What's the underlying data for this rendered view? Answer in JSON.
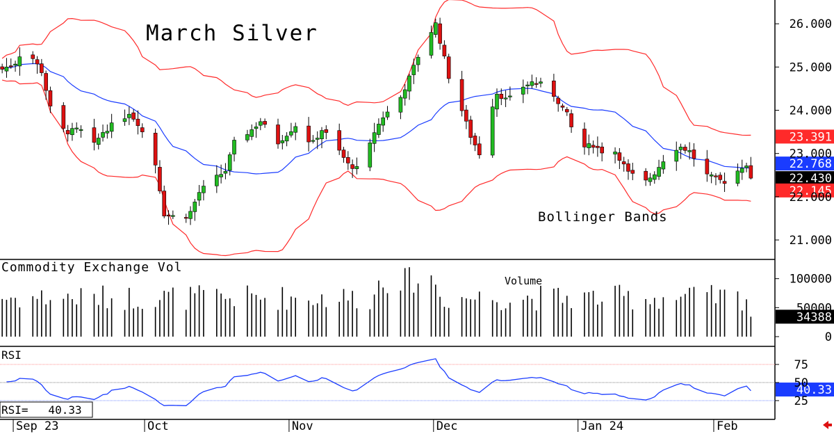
{
  "title": "March Silver",
  "price_panel": {
    "annotation": "Bollinger Bands",
    "y_ticks": [
      "26.000",
      "25.000",
      "24.000",
      "23.000",
      "22.000",
      "21.000"
    ],
    "y_tick_values": [
      26,
      25,
      24,
      23,
      22,
      21
    ],
    "y_range": [
      20.55,
      26.55
    ],
    "value_boxes": [
      {
        "label": "23.391",
        "value": 23.391,
        "color": "#ff2a2a"
      },
      {
        "label": "22.768",
        "value": 22.768,
        "color": "#1a3cff"
      },
      {
        "label": "22.430",
        "value": 22.43,
        "color": "#000000"
      },
      {
        "label": "22.145",
        "value": 22.145,
        "color": "#ff2a2a"
      }
    ]
  },
  "volume_panel": {
    "title": "Commodity Exchange Vol",
    "annotation": "Volume",
    "y_ticks": [
      "100000",
      "50000",
      "0"
    ],
    "y_tick_values": [
      100000,
      50000,
      0
    ],
    "y_range": [
      0,
      150000
    ],
    "value_box": {
      "label": "34388",
      "value": 34388,
      "color": "#000000"
    }
  },
  "rsi_panel": {
    "title": "RSI",
    "readout": "RSI=   40.33",
    "y_ticks": [
      "75",
      "50",
      "25"
    ],
    "y_tick_values": [
      75,
      50,
      25
    ],
    "y_range": [
      0,
      100
    ],
    "value_box": {
      "label": "40.33",
      "value": 40.33,
      "color": "#1a3cff"
    }
  },
  "x_axis": {
    "labels": [
      "Sep 23",
      "Oct",
      "Nov",
      "Dec",
      "Jan 24",
      "Feb"
    ],
    "label_bar_index": [
      3,
      33,
      66,
      99,
      132,
      163
    ]
  },
  "colors": {
    "up": "#22bb22",
    "down": "#dd1111",
    "bands": "#ff2a2a",
    "mid_band": "#1a3cff",
    "rsi": "#1a3cff",
    "volume": "#000000",
    "scroll_arrow": "#dd1111"
  },
  "scroll_arrow_icon": "left-arrow-icon",
  "chart_data": {
    "type": "candlestick",
    "title": "March Silver",
    "series_bars": 177,
    "close_key": [
      [
        0,
        24.95
      ],
      [
        3,
        25.1
      ],
      [
        5,
        25.45
      ],
      [
        7,
        25.2
      ],
      [
        9,
        24.9
      ],
      [
        11,
        24.05
      ],
      [
        13,
        23.6
      ],
      [
        15,
        23.5
      ],
      [
        17,
        23.55
      ],
      [
        19,
        23.5
      ],
      [
        21,
        23.2
      ],
      [
        23,
        23.5
      ],
      [
        25,
        23.65
      ],
      [
        27,
        23.75
      ],
      [
        29,
        23.95
      ],
      [
        31,
        23.7
      ],
      [
        33,
        23.3
      ],
      [
        35,
        22.75
      ],
      [
        37,
        21.6
      ],
      [
        39,
        21.55
      ],
      [
        41,
        21.45
      ],
      [
        43,
        21.65
      ],
      [
        45,
        22.1
      ],
      [
        47,
        22.3
      ],
      [
        49,
        22.45
      ],
      [
        51,
        22.6
      ],
      [
        53,
        23.25
      ],
      [
        55,
        23.4
      ],
      [
        57,
        23.55
      ],
      [
        59,
        23.75
      ],
      [
        61,
        23.5
      ],
      [
        63,
        23.25
      ],
      [
        65,
        23.45
      ],
      [
        67,
        23.65
      ],
      [
        69,
        23.35
      ],
      [
        71,
        23.25
      ],
      [
        73,
        23.55
      ],
      [
        75,
        23.35
      ],
      [
        77,
        23.05
      ],
      [
        79,
        22.75
      ],
      [
        81,
        22.65
      ],
      [
        83,
        22.9
      ],
      [
        85,
        23.5
      ],
      [
        87,
        23.85
      ],
      [
        89,
        24.05
      ],
      [
        91,
        24.3
      ],
      [
        93,
        24.75
      ],
      [
        95,
        25.25
      ],
      [
        97,
        25.65
      ],
      [
        99,
        26.0
      ],
      [
        101,
        25.2
      ],
      [
        103,
        24.35
      ],
      [
        105,
        24.0
      ],
      [
        107,
        23.4
      ],
      [
        109,
        23.0
      ],
      [
        111,
        23.85
      ],
      [
        113,
        24.4
      ],
      [
        115,
        24.25
      ],
      [
        117,
        24.3
      ],
      [
        119,
        24.55
      ],
      [
        121,
        24.65
      ],
      [
        123,
        24.6
      ],
      [
        125,
        24.5
      ],
      [
        127,
        24.2
      ],
      [
        129,
        23.9
      ],
      [
        131,
        23.3
      ],
      [
        133,
        23.15
      ],
      [
        135,
        23.2
      ],
      [
        137,
        23.05
      ],
      [
        139,
        23.2
      ],
      [
        141,
        22.9
      ],
      [
        143,
        22.55
      ],
      [
        145,
        22.45
      ],
      [
        147,
        22.35
      ],
      [
        149,
        22.55
      ],
      [
        151,
        22.85
      ],
      [
        153,
        23.1
      ],
      [
        155,
        23.15
      ],
      [
        157,
        23.05
      ],
      [
        159,
        22.75
      ],
      [
        161,
        22.5
      ],
      [
        163,
        22.4
      ],
      [
        165,
        22.35
      ],
      [
        167,
        22.5
      ],
      [
        169,
        22.7
      ],
      [
        170,
        22.75
      ],
      [
        171,
        22.43
      ]
    ],
    "xlabel": "",
    "ylabel": ""
  }
}
